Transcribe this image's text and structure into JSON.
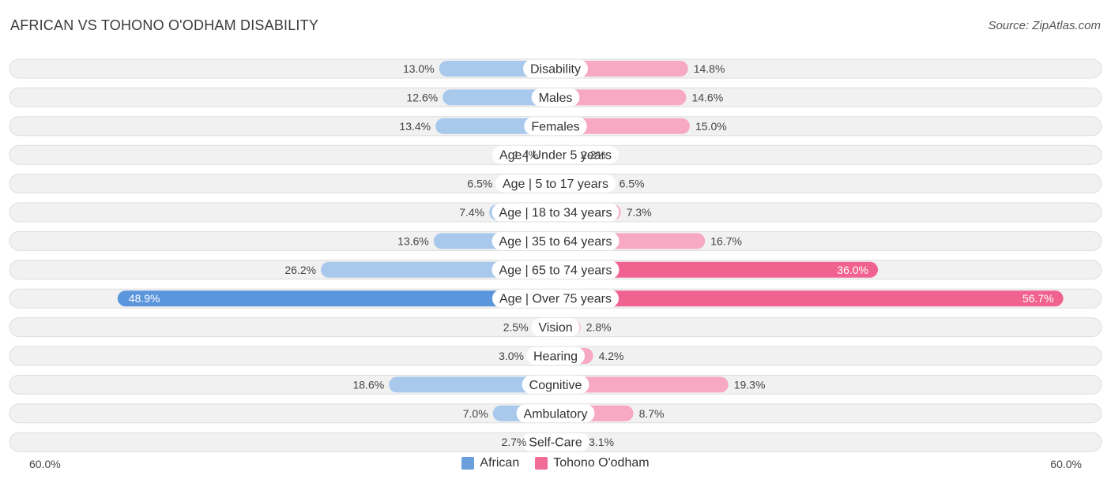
{
  "header": {
    "title": "AFRICAN VS TOHONO O'ODHAM DISABILITY",
    "source": "Source: ZipAtlas.com"
  },
  "axis": {
    "left_label": "60.0%",
    "right_label": "60.0%"
  },
  "legend": [
    {
      "name": "African",
      "color": "#6a9fdc"
    },
    {
      "name": "Tohono O'odham",
      "color": "#f06b96"
    }
  ],
  "chart_data": {
    "type": "bar",
    "orientation": "horizontal-diverging",
    "title": "AFRICAN VS TOHONO O'ODHAM DISABILITY",
    "xlim": [
      -60,
      60
    ],
    "unit": "%",
    "categories": [
      "Disability",
      "Males",
      "Females",
      "Age | Under 5 years",
      "Age | 5 to 17 years",
      "Age | 18 to 34 years",
      "Age | 35 to 64 years",
      "Age | 65 to 74 years",
      "Age | Over 75 years",
      "Vision",
      "Hearing",
      "Cognitive",
      "Ambulatory",
      "Self-Care"
    ],
    "series": [
      {
        "name": "African",
        "values": [
          13.0,
          12.6,
          13.4,
          1.4,
          6.5,
          7.4,
          13.6,
          26.2,
          48.9,
          2.5,
          3.0,
          18.6,
          7.0,
          2.7
        ],
        "labels": [
          "13.0%",
          "12.6%",
          "13.4%",
          "1.4%",
          "6.5%",
          "7.4%",
          "13.6%",
          "26.2%",
          "48.9%",
          "2.5%",
          "3.0%",
          "18.6%",
          "7.0%",
          "2.7%"
        ]
      },
      {
        "name": "Tohono O'odham",
        "values": [
          14.8,
          14.6,
          15.0,
          2.2,
          6.5,
          7.3,
          16.7,
          36.0,
          56.7,
          2.8,
          4.2,
          19.3,
          8.7,
          3.1
        ],
        "labels": [
          "14.8%",
          "14.6%",
          "15.0%",
          "2.2%",
          "6.5%",
          "7.3%",
          "16.7%",
          "36.0%",
          "56.7%",
          "2.8%",
          "4.2%",
          "19.3%",
          "8.7%",
          "3.1%"
        ]
      }
    ],
    "colors": {
      "african_light": "#a8c8ec",
      "african_dark": "#5b96dc",
      "tohono_light": "#f7a9c3",
      "tohono_dark": "#f0628f",
      "row_bg": "#f1f1f1",
      "row_border": "#dedede",
      "label_bg": "#ffffff"
    }
  }
}
